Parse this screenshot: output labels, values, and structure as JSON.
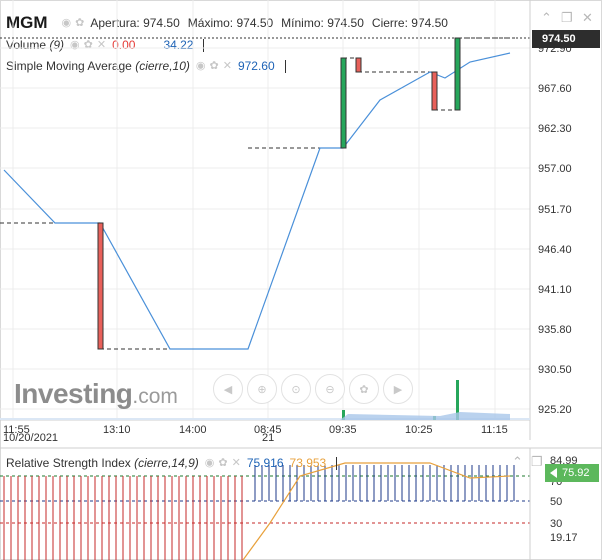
{
  "header": {
    "symbol": "MGM",
    "ohlc": {
      "open_label": "Apertura:",
      "open_value": "974.50",
      "high_label": "Máximo:",
      "high_value": "974.50",
      "low_label": "Mínimo:",
      "low_value": "974.50",
      "close_label": "Cierre:",
      "close_value": "974.50"
    },
    "volume": {
      "label": "Volume",
      "params": "(9)",
      "value_1": "0.00",
      "value_2": "34.22"
    },
    "sma": {
      "label": "Simple Moving Average",
      "params": "(cierre,10)",
      "value": "972.60"
    }
  },
  "window_controls": [
    "collapse",
    "restore",
    "close"
  ],
  "price_axis": {
    "labels": [
      "972.90",
      "967.60",
      "962.30",
      "957.00",
      "951.70",
      "946.40",
      "941.10",
      "935.80",
      "930.50",
      "925.20"
    ],
    "current_price": "974.50"
  },
  "time_axis": {
    "labels": [
      "11:55",
      "13:10",
      "14:00",
      "08:45",
      "09:35",
      "10:25",
      "11:15"
    ],
    "sub_labels": [
      "10/20/2021",
      "21"
    ]
  },
  "watermark": {
    "brand": "Investing",
    "suffix": ".com"
  },
  "toolbar": {
    "buttons": [
      "scroll-left",
      "zoom-in",
      "zoom-reset",
      "zoom-out",
      "settings",
      "scroll-right"
    ]
  },
  "rsi": {
    "label": "Relative Strength Index",
    "params": "(cierre,14,9)",
    "value": "75.916",
    "signal": "73.953",
    "axis_labels": [
      "84.99",
      "70",
      "50",
      "30",
      "19.17"
    ],
    "current_tag": "75.92"
  },
  "colors": {
    "up_candle": "#26a65b",
    "down_candle": "#e8605a",
    "sma_line": "#4a90d9",
    "rsi_line": "#e8a13c",
    "rsi_upper": "#1e7a2e",
    "rsi_lower": "#c62828",
    "tag_price": "#2d2d2d",
    "tag_rsi": "#5cb85c"
  },
  "chart_data": {
    "type": "candlestick",
    "candles": [
      {
        "time": "11:55",
        "open": 949.8,
        "high": 949.8,
        "low": 949.8,
        "close": 949.8
      },
      {
        "time": "13:10",
        "open": 949.8,
        "high": 949.8,
        "low": 933.0,
        "close": 933.0
      },
      {
        "time": "09:35",
        "open": 960.0,
        "high": 974.3,
        "low": 960.0,
        "close": 974.3
      },
      {
        "time": "09:50",
        "open": 974.3,
        "high": 974.3,
        "low": 972.6,
        "close": 972.6
      },
      {
        "time": "10:35",
        "open": 970.8,
        "high": 970.8,
        "low": 966.0,
        "close": 966.0
      },
      {
        "time": "10:50",
        "open": 966.0,
        "high": 974.5,
        "low": 966.0,
        "close": 974.5
      }
    ],
    "sma_series": [
      955.5,
      949.8,
      949.8,
      933.0,
      933.0,
      960.0,
      967.0,
      970.8,
      970.8,
      969.2,
      972.6
    ],
    "ylim": [
      925.2,
      974.5
    ]
  }
}
